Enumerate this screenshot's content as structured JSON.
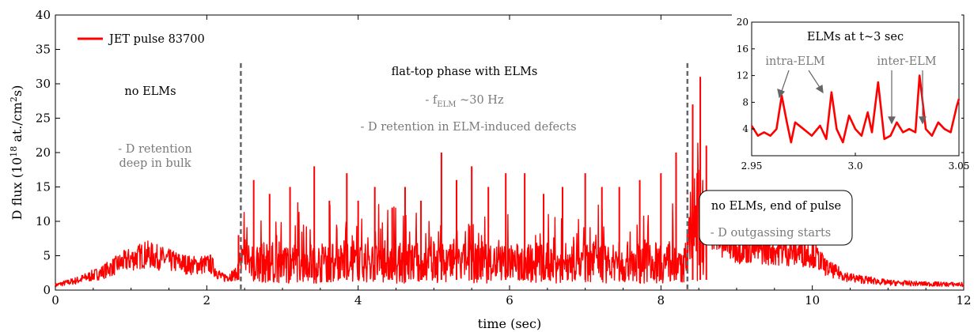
{
  "chart_data": {
    "type": "line",
    "xlabel": "time (sec)",
    "ylabel_parts": {
      "base": "D flux (10",
      "exp1": "18",
      "mid": " at./cm",
      "exp2": "2",
      "end": "s)"
    },
    "xlim": [
      0,
      12
    ],
    "ylim": [
      0,
      40
    ],
    "xticks": [
      "0",
      "2",
      "4",
      "6",
      "8",
      "10",
      "12"
    ],
    "yticks": [
      "0",
      "5",
      "10",
      "15",
      "20",
      "25",
      "30",
      "35",
      "40"
    ],
    "grid": false,
    "legend": {
      "position": "top-left",
      "entries": [
        {
          "label": "JET pulse 83700",
          "color": "#ff0000"
        }
      ]
    },
    "series": [
      {
        "name": "JET pulse 83700",
        "color": "#ff0000",
        "envelope_x": [
          0,
          0.3,
          0.6,
          0.9,
          1.2,
          1.5,
          1.8,
          2.05,
          2.2,
          2.4,
          2.45,
          3.0,
          4.0,
          5.0,
          6.0,
          7.0,
          8.0,
          8.35,
          8.4,
          8.5,
          8.6,
          8.8,
          9.0,
          9.5,
          10.0,
          10.2,
          10.5,
          11.0,
          11.5,
          12.0
        ],
        "envelope_y": [
          0.8,
          1.6,
          2.8,
          4.6,
          5.8,
          4.8,
          4.0,
          4.2,
          2.0,
          2.6,
          6.0,
          6.0,
          5.8,
          5.8,
          5.8,
          6.0,
          6.0,
          6.0,
          20.0,
          22.0,
          12.0,
          8.0,
          7.0,
          6.5,
          6.0,
          3.5,
          2.0,
          1.2,
          1.0,
          0.9
        ],
        "spikes_x": [
          2.42,
          2.62,
          2.83,
          3.1,
          3.42,
          3.62,
          3.85,
          4.0,
          4.22,
          4.45,
          4.62,
          4.83,
          5.1,
          5.3,
          5.5,
          5.72,
          5.95,
          6.2,
          6.45,
          6.7,
          7.0,
          7.22,
          7.45,
          7.72,
          8.0,
          8.2,
          8.42,
          8.52,
          8.6
        ],
        "spikes_y": [
          8,
          16,
          14,
          15,
          18,
          13,
          17,
          13,
          15,
          12,
          15,
          13,
          20,
          16,
          18,
          15,
          17,
          17,
          14,
          15,
          17,
          15,
          15,
          16,
          17,
          20,
          27,
          31,
          21
        ]
      }
    ],
    "annotations": {
      "no_elms": "no ELMs",
      "d_retention_1": "- D retention",
      "d_retention_2": "deep in bulk",
      "flat_top": "flat-top phase with ELMs",
      "f_elm_prefix": "- f",
      "f_elm_sub": "ELM",
      "f_elm_suffix": " ~30 Hz",
      "d_retention_defects": "- D retention in ELM-induced defects",
      "end_box_1": "no ELMs, end of pulse",
      "end_box_2": "- D outgassing starts"
    },
    "dashed_lines_x": [
      2.45,
      8.35
    ],
    "inset": {
      "title": "ELMs at t~3 sec",
      "xlim": [
        2.95,
        3.05
      ],
      "ylim": [
        0,
        20
      ],
      "xticks": [
        "2.95",
        "3.0",
        "3.05"
      ],
      "yticks": [
        "4",
        "8",
        "12",
        "16",
        "20"
      ],
      "label_intra": "intra-ELM",
      "label_inter": "inter-ELM",
      "x": [
        2.95,
        2.953,
        2.956,
        2.959,
        2.962,
        2.9645,
        2.967,
        2.969,
        2.971,
        2.975,
        2.979,
        2.983,
        2.986,
        2.9885,
        2.991,
        2.994,
        2.997,
        3.0,
        3.003,
        3.006,
        3.008,
        3.011,
        3.014,
        3.017,
        3.02,
        3.023,
        3.026,
        3.029,
        3.031,
        3.034,
        3.037,
        3.04,
        3.043,
        3.046,
        3.049,
        3.05
      ],
      "y": [
        4.5,
        3.0,
        3.5,
        3.0,
        4.0,
        9.0,
        5.0,
        2.0,
        5.0,
        4.0,
        3.0,
        4.5,
        2.5,
        9.5,
        4.0,
        2.0,
        6.0,
        4.0,
        3.0,
        6.5,
        3.5,
        11.0,
        2.5,
        3.0,
        5.0,
        3.5,
        4.0,
        3.5,
        12.0,
        4.0,
        3.0,
        5.0,
        4.0,
        3.5,
        7.5,
        8.5
      ]
    }
  }
}
